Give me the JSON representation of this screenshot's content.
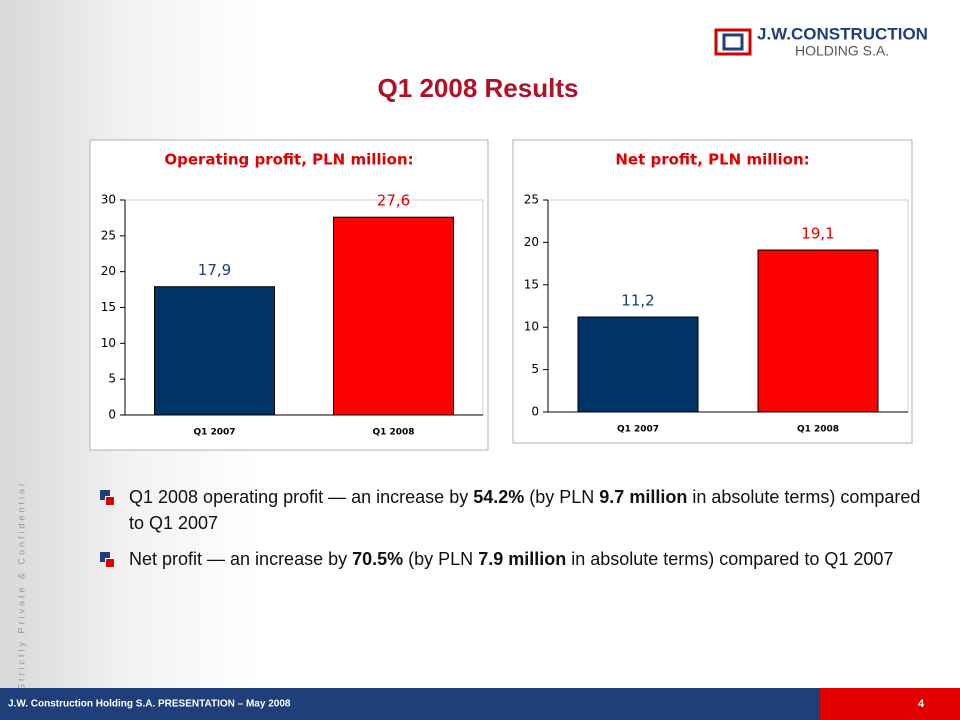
{
  "logo": {
    "name": "J.W.CONSTRUCTION",
    "subname": "HOLDING S.A."
  },
  "title": "Q1 2008 Results",
  "side_note": "Strictly Private & Confidential",
  "chart_data": [
    {
      "type": "bar",
      "title": "Operating profit, PLN million:",
      "categories": [
        "Q1 2007",
        "Q1 2008"
      ],
      "values": [
        17.9,
        27.6
      ],
      "value_labels": [
        "17,9",
        "27,6"
      ],
      "colors": [
        "#003366",
        "#ff0000"
      ],
      "ylim": [
        0,
        30
      ],
      "yticks": [
        0,
        5,
        10,
        15,
        20,
        25,
        30
      ],
      "grid": false
    },
    {
      "type": "bar",
      "title": "Net profit, PLN million:",
      "categories": [
        "Q1 2007",
        "Q1 2008"
      ],
      "values": [
        11.2,
        19.1
      ],
      "value_labels": [
        "11,2",
        "19,1"
      ],
      "colors": [
        "#003366",
        "#ff0000"
      ],
      "ylim": [
        0,
        25
      ],
      "yticks": [
        0,
        5,
        10,
        15,
        20,
        25
      ],
      "grid": false
    }
  ],
  "bullets": [
    [
      {
        "text": "Q1 2008 operating profit — an increase by ",
        "bold": false
      },
      {
        "text": "54.2%",
        "bold": true
      },
      {
        "text": " (by PLN ",
        "bold": false
      },
      {
        "text": "9.7 million",
        "bold": true
      },
      {
        "text": " in absolute terms) compared to Q1 2007",
        "bold": false
      }
    ],
    [
      {
        "text": "Net profit — an increase by ",
        "bold": false
      },
      {
        "text": "70.5%",
        "bold": true
      },
      {
        "text": " (by PLN ",
        "bold": false
      },
      {
        "text": "7.9 million",
        "bold": true
      },
      {
        "text": " in absolute terms) compared to Q1 2007",
        "bold": false
      }
    ]
  ],
  "footer": {
    "text": "J.W. Construction Holding S.A.  PRESENTATION – May 2008",
    "page": "4"
  }
}
